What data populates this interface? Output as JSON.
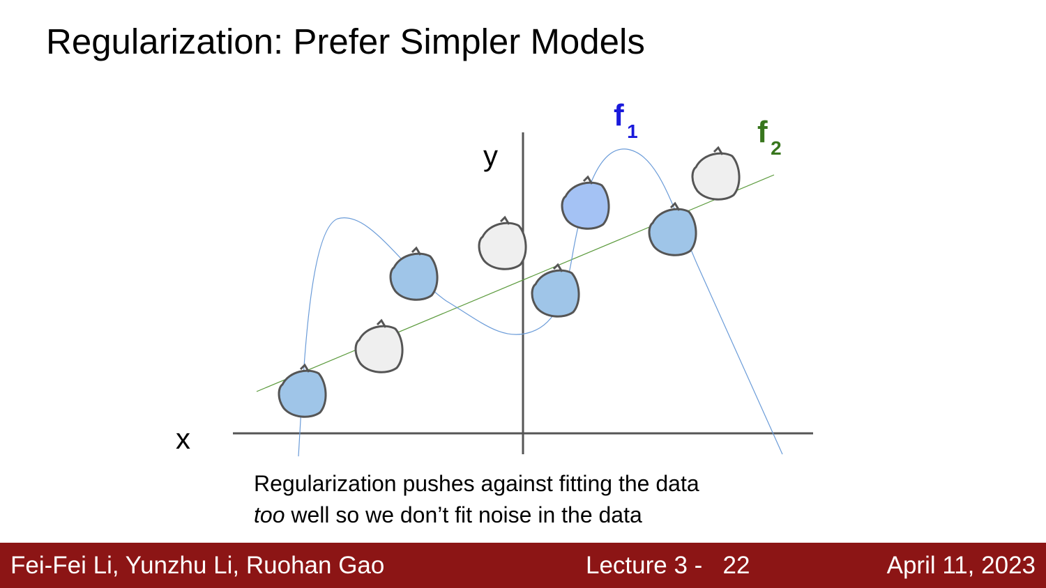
{
  "slide": {
    "title": "Regularization: Prefer Simpler Models"
  },
  "diagram": {
    "axis_labels": {
      "x": "x",
      "y": "y"
    },
    "curves": [
      {
        "name": "f",
        "subscript": "1",
        "color": "#1a1adb",
        "stroke": "#6a9bd8",
        "kind": "complex-wiggly-fit"
      },
      {
        "name": "f",
        "subscript": "2",
        "color": "#38761d",
        "stroke": "#5b9a3c",
        "kind": "straight-line-fit"
      }
    ],
    "point_colors": {
      "blue": "#9fc5e8",
      "light_blue": "#a4c2f4",
      "gray": "#efefef",
      "outline": "#555555"
    },
    "points": [
      {
        "fill": "blue"
      },
      {
        "fill": "gray"
      },
      {
        "fill": "blue"
      },
      {
        "fill": "gray"
      },
      {
        "fill": "blue"
      },
      {
        "fill": "light_blue"
      },
      {
        "fill": "blue"
      },
      {
        "fill": "gray"
      }
    ]
  },
  "caption": {
    "line1": "Regularization pushes against fitting the data",
    "line2_em": "too",
    "line2_rest": " well so we don’t fit noise in the data"
  },
  "footer": {
    "authors": "Fei-Fei Li, Yunzhu Li, Ruohan Gao",
    "lecture": "Lecture 3 -   22",
    "date": "April 11, 2023",
    "background": "#8c1515"
  }
}
